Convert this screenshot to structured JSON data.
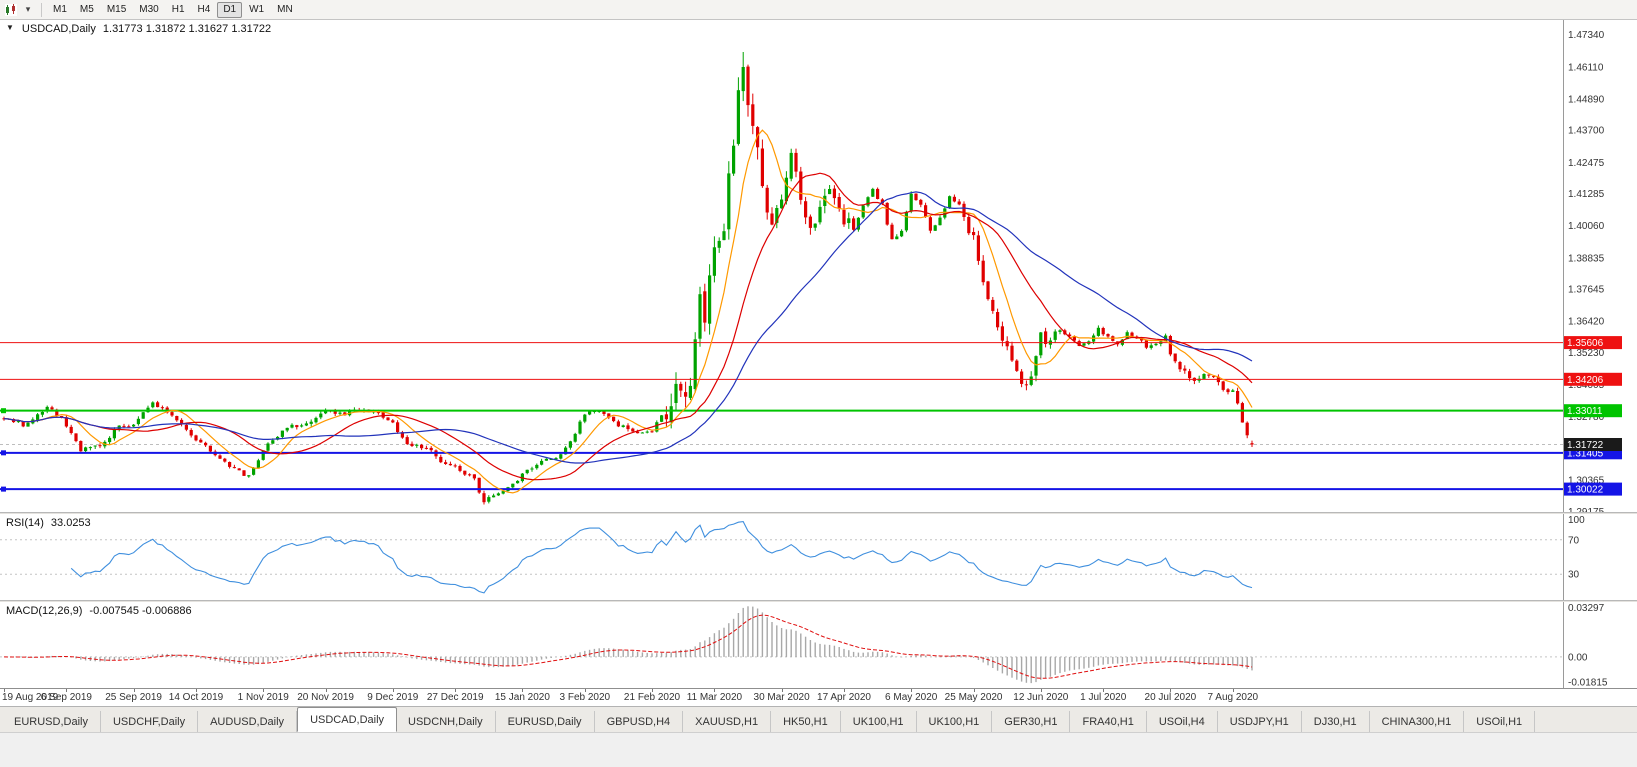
{
  "toolbar": {
    "timeframes": [
      "M1",
      "M5",
      "M15",
      "M30",
      "H1",
      "H4",
      "D1",
      "W1",
      "MN"
    ],
    "active_timeframe": "D1"
  },
  "icons": {
    "symbol_marker": "▼",
    "dropdown_arrow": "▾"
  },
  "chart": {
    "title": "USDCAD,Daily",
    "ohlc_text": "1.31773 1.31872 1.31627 1.31722"
  },
  "rsi": {
    "label": "RSI(14)",
    "value": "33.0253",
    "axis_labels": [
      "100",
      "70",
      "30"
    ],
    "levels": [
      70,
      30
    ],
    "line_color": "#3f8fde"
  },
  "macd": {
    "label": "MACD(12,26,9)",
    "value": "-0.007545 -0.006886",
    "axis_labels": [
      "0.03297",
      "0.00",
      "-0.01815"
    ],
    "range": {
      "min": -0.0195,
      "max": 0.0345
    },
    "histogram_color": "#a8a8a8",
    "signal_color": "#e01010"
  },
  "tabs": {
    "items": [
      "EURUSD,Daily",
      "USDCHF,Daily",
      "AUDUSD,Daily",
      "USDCAD,Daily",
      "USDCNH,Daily",
      "EURUSD,Daily",
      "GBPUSD,H4",
      "XAUUSD,H1",
      "HK50,H1",
      "UK100,H1",
      "UK100,H1",
      "GER30,H1",
      "FRA40,H1",
      "USOil,H4",
      "USDJPY,H1",
      "DJ30,H1",
      "CHINA300,H1",
      "USOil,H1"
    ],
    "active_index": 3
  },
  "chart_data": {
    "type": "candlestick",
    "symbol": "USDCAD",
    "period": "Daily",
    "current_bar": {
      "open": 1.31773,
      "high": 1.31872,
      "low": 1.31627,
      "close": 1.31722
    },
    "current_price_label": "1.31722",
    "price_axis_labels": [
      "1.47340",
      "1.46110",
      "1.44890",
      "1.43700",
      "1.42475",
      "1.41285",
      "1.40060",
      "1.38835",
      "1.37645",
      "1.36420",
      "1.35230",
      "1.34005",
      "1.32780",
      "1.31590",
      "1.30365",
      "1.29175"
    ],
    "price_range": {
      "min": 1.2915,
      "max": 1.479
    },
    "date_labels": [
      "19 Aug 2019",
      "6 Sep 2019",
      "25 Sep 2019",
      "14 Oct 2019",
      "1 Nov 2019",
      "20 Nov 2019",
      "9 Dec 2019",
      "27 Dec 2019",
      "15 Jan 2020",
      "3 Feb 2020",
      "21 Feb 2020",
      "11 Mar 2020",
      "30 Mar 2020",
      "17 Apr 2020",
      "6 May 2020",
      "25 May 2020",
      "12 Jun 2020",
      "1 Jul 2020",
      "20 Jul 2020",
      "7 Aug 2020"
    ],
    "label_bar_indices": [
      0,
      13,
      27,
      40,
      54,
      67,
      81,
      94,
      108,
      121,
      135,
      148,
      162,
      175,
      189,
      202,
      216,
      229,
      243,
      256
    ],
    "num_bars": 261,
    "horizontal_lines": [
      {
        "price": 1.35606,
        "label": "1.35606",
        "color": "#ee1111",
        "width": 1,
        "anchor": false
      },
      {
        "price": 1.34206,
        "label": "1.34206",
        "color": "#ee1111",
        "width": 1,
        "anchor": false
      },
      {
        "price": 1.33011,
        "label": "1.33011",
        "color": "#00c400",
        "width": 2,
        "anchor": true
      },
      {
        "price": 1.31405,
        "label": "1.31405",
        "color": "#1414e6",
        "width": 2,
        "anchor": true
      },
      {
        "price": 1.30022,
        "label": "1.30022",
        "color": "#1414e6",
        "width": 2,
        "anchor": true
      }
    ],
    "moving_averages": [
      {
        "period": 8,
        "color": "#ff9900"
      },
      {
        "period": 20,
        "color": "#dd0000"
      },
      {
        "period": 40,
        "color": "#2233bb"
      }
    ],
    "up_color": "#00a200",
    "down_color": "#e00000",
    "base_amp": 0.0016,
    "volatility_zones": [
      {
        "from": 138,
        "to": 158,
        "amp": 0.0085
      },
      {
        "from": 159,
        "to": 176,
        "amp": 0.0048
      },
      {
        "from": 200,
        "to": 219,
        "amp": 0.0036
      },
      {
        "from": 244,
        "to": 260,
        "amp": 0.0022
      }
    ],
    "spike": {
      "index": 154,
      "high": 1.4668
    },
    "close_keyframes": [
      [
        0,
        1.327
      ],
      [
        4,
        1.325
      ],
      [
        9,
        1.3315
      ],
      [
        12,
        1.327
      ],
      [
        16,
        1.3155
      ],
      [
        20,
        1.317
      ],
      [
        24,
        1.324
      ],
      [
        27,
        1.3245
      ],
      [
        31,
        1.333
      ],
      [
        34,
        1.33
      ],
      [
        37,
        1.3245
      ],
      [
        40,
        1.3195
      ],
      [
        44,
        1.313
      ],
      [
        48,
        1.3075
      ],
      [
        51,
        1.305
      ],
      [
        54,
        1.315
      ],
      [
        58,
        1.323
      ],
      [
        63,
        1.3255
      ],
      [
        67,
        1.33
      ],
      [
        70,
        1.3285
      ],
      [
        74,
        1.3305
      ],
      [
        78,
        1.329
      ],
      [
        81,
        1.3255
      ],
      [
        84,
        1.317
      ],
      [
        88,
        1.3165
      ],
      [
        91,
        1.311
      ],
      [
        95,
        1.308
      ],
      [
        98,
        1.3035
      ],
      [
        100,
        1.296
      ],
      [
        104,
        1.299
      ],
      [
        108,
        1.3055
      ],
      [
        112,
        1.3105
      ],
      [
        115,
        1.3125
      ],
      [
        118,
        1.318
      ],
      [
        121,
        1.329
      ],
      [
        124,
        1.3295
      ],
      [
        127,
        1.3255
      ],
      [
        130,
        1.323
      ],
      [
        133,
        1.3215
      ],
      [
        135,
        1.3225
      ],
      [
        137,
        1.3285
      ],
      [
        139,
        1.334
      ],
      [
        141,
        1.338
      ],
      [
        143,
        1.342
      ],
      [
        144,
        1.356
      ],
      [
        145,
        1.37
      ],
      [
        146,
        1.364
      ],
      [
        147,
        1.378
      ],
      [
        148,
        1.388
      ],
      [
        149,
        1.3945
      ],
      [
        150,
        1.397
      ],
      [
        151,
        1.423
      ],
      [
        152,
        1.435
      ],
      [
        153,
        1.451
      ],
      [
        154,
        1.464
      ],
      [
        155,
        1.445
      ],
      [
        156,
        1.437
      ],
      [
        157,
        1.426
      ],
      [
        158,
        1.418
      ],
      [
        159,
        1.406
      ],
      [
        160,
        1.3995
      ],
      [
        161,
        1.4055
      ],
      [
        163,
        1.4205
      ],
      [
        164,
        1.428
      ],
      [
        165,
        1.419
      ],
      [
        166,
        1.409
      ],
      [
        168,
        1.399
      ],
      [
        170,
        1.409
      ],
      [
        172,
        1.416
      ],
      [
        174,
        1.4085
      ],
      [
        175,
        1.403
      ],
      [
        177,
        1.3995
      ],
      [
        179,
        1.409
      ],
      [
        181,
        1.414
      ],
      [
        183,
        1.4085
      ],
      [
        185,
        1.395
      ],
      [
        187,
        1.3995
      ],
      [
        189,
        1.412
      ],
      [
        191,
        1.4085
      ],
      [
        193,
        1.399
      ],
      [
        195,
        1.404
      ],
      [
        197,
        1.411
      ],
      [
        199,
        1.4085
      ],
      [
        201,
        1.399
      ],
      [
        202,
        1.3975
      ],
      [
        204,
        1.379
      ],
      [
        206,
        1.368
      ],
      [
        208,
        1.3585
      ],
      [
        210,
        1.349
      ],
      [
        212,
        1.3395
      ],
      [
        214,
        1.342
      ],
      [
        216,
        1.3585
      ],
      [
        218,
        1.3555
      ],
      [
        220,
        1.3615
      ],
      [
        222,
        1.358
      ],
      [
        224,
        1.3545
      ],
      [
        226,
        1.356
      ],
      [
        228,
        1.3615
      ],
      [
        230,
        1.358
      ],
      [
        232,
        1.355
      ],
      [
        234,
        1.36
      ],
      [
        236,
        1.3575
      ],
      [
        238,
        1.3545
      ],
      [
        240,
        1.356
      ],
      [
        242,
        1.358
      ],
      [
        243,
        1.3515
      ],
      [
        246,
        1.3445
      ],
      [
        248,
        1.3405
      ],
      [
        250,
        1.3445
      ],
      [
        252,
        1.342
      ],
      [
        254,
        1.3385
      ],
      [
        256,
        1.338
      ],
      [
        257,
        1.3335
      ],
      [
        258,
        1.3265
      ],
      [
        259,
        1.32
      ],
      [
        260,
        1.31722
      ]
    ]
  }
}
